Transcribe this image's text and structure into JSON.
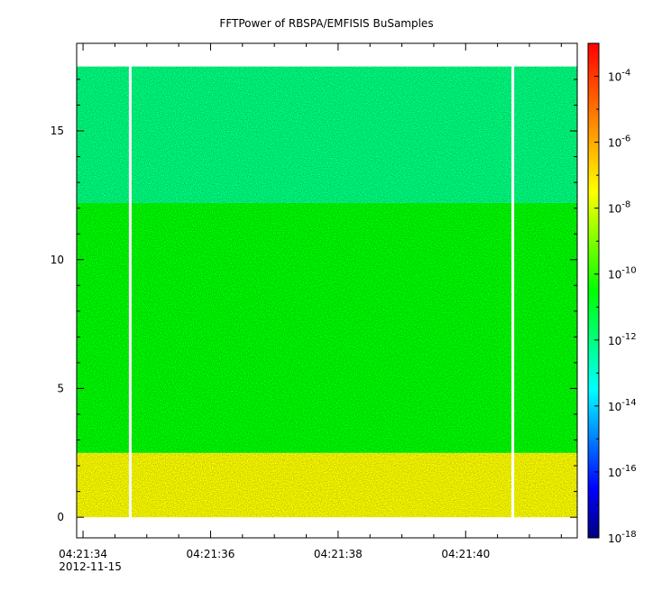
{
  "chart_data": {
    "type": "heatmap",
    "title": "FFTPower of RBSPA/EMFISIS  BuSamples",
    "xlabel": "",
    "ylabel": "",
    "x_axis": {
      "start": "04:21:33.9",
      "end": "04:21:41.75",
      "ticks": [
        {
          "value": "04:21:34",
          "label": "04:21:34",
          "sublabel": "2012-11-15"
        },
        {
          "value": "04:21:36",
          "label": "04:21:36"
        },
        {
          "value": "04:21:38",
          "label": "04:21:38"
        },
        {
          "value": "04:21:40",
          "label": "04:21:40"
        }
      ]
    },
    "y_axis": {
      "range": [
        -0.8,
        18.4
      ],
      "ticks": [
        0,
        5,
        10,
        15
      ]
    },
    "z_axis": {
      "scale": "log",
      "range": [
        1e-18,
        0.001
      ],
      "ticks": [
        {
          "base": "10",
          "exp": "-4",
          "value": 0.0001
        },
        {
          "base": "10",
          "exp": "-6",
          "value": 1e-06
        },
        {
          "base": "10",
          "exp": "-8",
          "value": 1e-08
        },
        {
          "base": "10",
          "exp": "-10",
          "value": 1e-10
        },
        {
          "base": "10",
          "exp": "-12",
          "value": 1e-12
        },
        {
          "base": "10",
          "exp": "-14",
          "value": 1e-14
        },
        {
          "base": "10",
          "exp": "-16",
          "value": 1e-16
        },
        {
          "base": "10",
          "exp": "-18",
          "value": 1e-18
        }
      ],
      "colormap": [
        "#00007f",
        "#0000ff",
        "#007fff",
        "#00ffff",
        "#00ff7f",
        "#00ff00",
        "#7fff00",
        "#ffff00",
        "#ffaa00",
        "#ff5500",
        "#ff0000"
      ]
    },
    "data_extent": {
      "y_min": 0,
      "y_max": 17.5
    },
    "bands": [
      {
        "y_from": 0.0,
        "y_to": 2.5,
        "power": 3e-08
      },
      {
        "y_from": 2.5,
        "y_to": 12.2,
        "power": 3e-11
      },
      {
        "y_from": 12.2,
        "y_to": 17.5,
        "power": 1e-12
      }
    ],
    "gaps": [
      {
        "time": "04:21:34.74"
      },
      {
        "time": "04:21:40.74"
      }
    ],
    "grid": false
  }
}
